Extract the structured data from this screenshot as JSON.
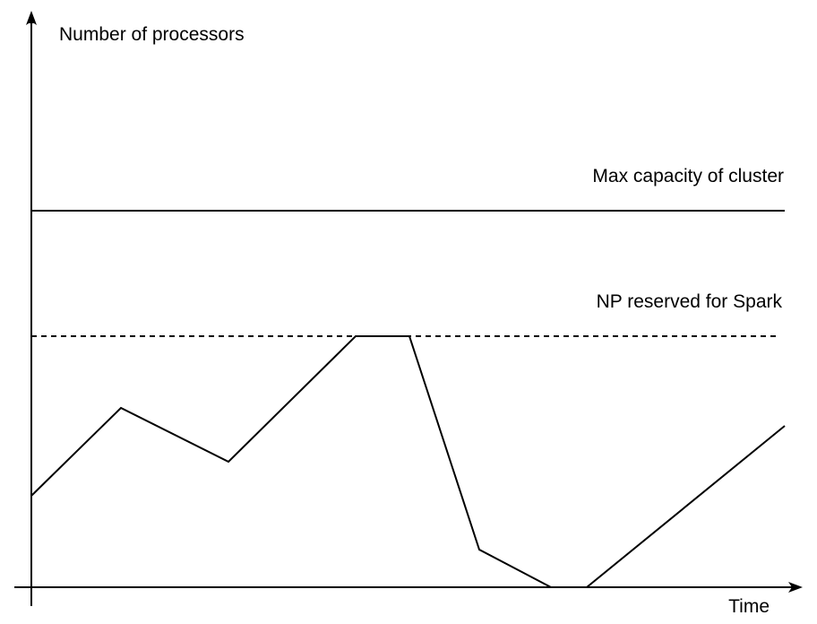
{
  "labels": {
    "y_axis": "Number of processors",
    "x_axis": "Time",
    "max_capacity": "Max capacity of cluster",
    "np_reserved": "NP reserved for Spark"
  },
  "colors": {
    "line": "#000000",
    "background": "#ffffff"
  }
}
